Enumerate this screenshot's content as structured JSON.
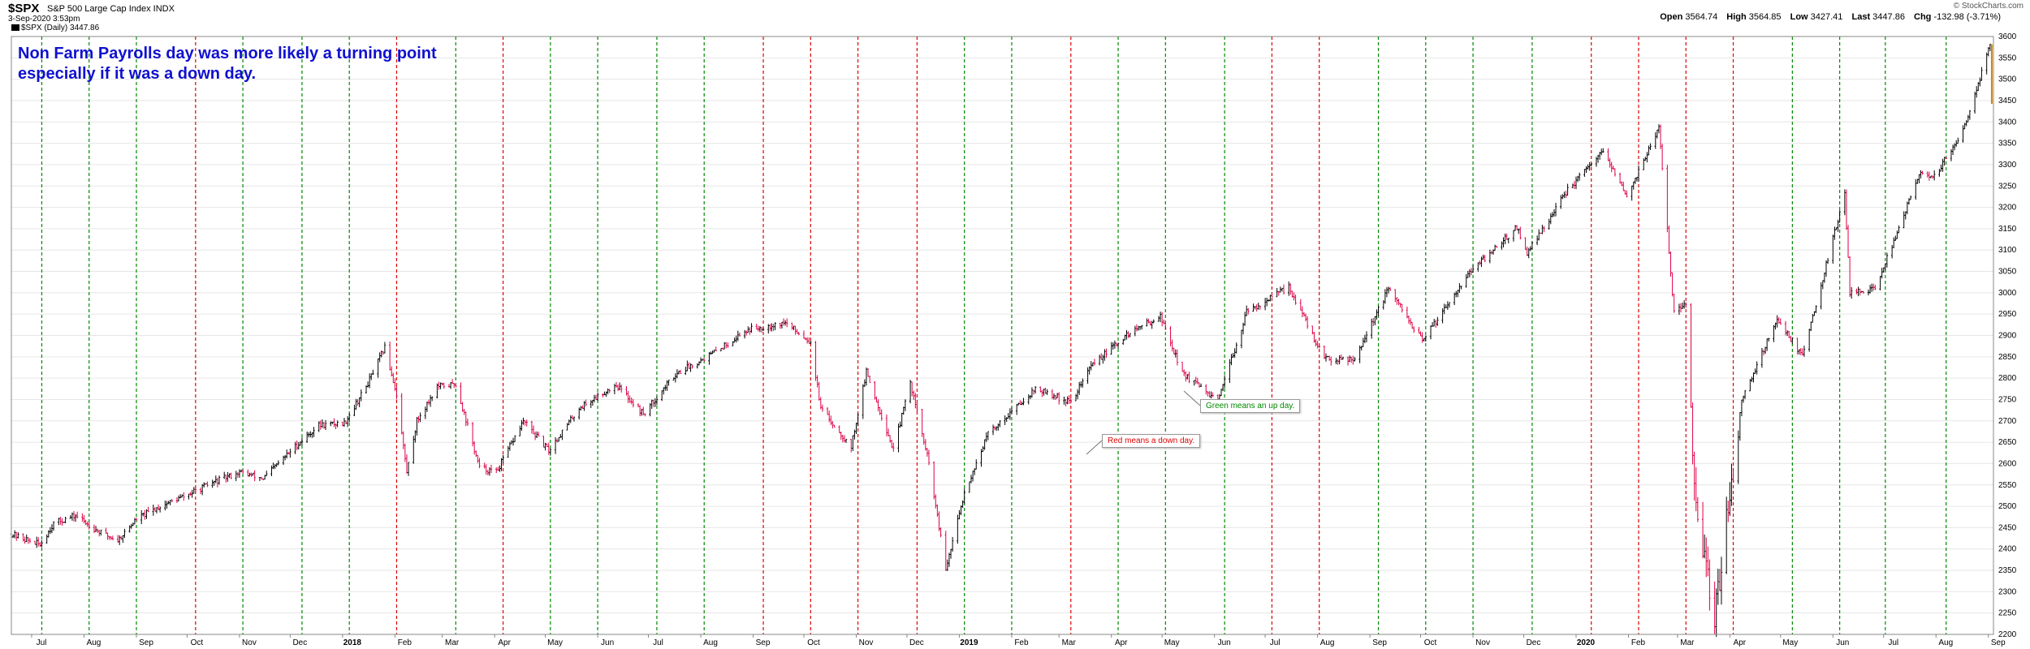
{
  "header": {
    "ticker": "$SPX",
    "description": "S&P 500 Large Cap Index  INDX",
    "timestamp": "3-Sep-2020 3:53pm",
    "legend": "$SPX (Daily) 3447.86",
    "copyright": "© StockCharts.com",
    "ohlc": {
      "open_label": "Open",
      "open": "3564.74",
      "high_label": "High",
      "high": "3564.85",
      "low_label": "Low",
      "low": "3427.41",
      "last_label": "Last",
      "last": "3447.86",
      "chg_label": "Chg",
      "chg": "-132.98 (-3.71%)"
    }
  },
  "annotations": {
    "title_line1": "Non Farm Payrolls day was more likely a turning point",
    "title_line2": "especially if it was a down day.",
    "green_note": "Green means an up day.",
    "red_note": "Red means a down day."
  },
  "colors": {
    "up_day_line": "#008800",
    "down_day_line": "#dd0000",
    "bar_up": "#000000",
    "bar_down": "#dd0044",
    "last_bar": "#cc8800",
    "grid": "#e6e6e6",
    "annotation_text": "#1010d0"
  },
  "chart_data": {
    "type": "line",
    "subtype": "ohlc-bar",
    "title": "",
    "xlabel": "",
    "ylabel": "",
    "ylim": [
      2200,
      3600
    ],
    "y_ticks": [
      2200,
      2250,
      2300,
      2350,
      2400,
      2450,
      2500,
      2550,
      2600,
      2650,
      2700,
      2750,
      2800,
      2850,
      2900,
      2950,
      3000,
      3050,
      3100,
      3150,
      3200,
      3250,
      3300,
      3350,
      3400,
      3450,
      3500,
      3550,
      3600
    ],
    "x_tick_labels": [
      "Jul",
      "Aug",
      "Sep",
      "Oct",
      "Nov",
      "Dec",
      "2018",
      "Feb",
      "Mar",
      "Apr",
      "May",
      "Jun",
      "Jul",
      "Aug",
      "Sep",
      "Oct",
      "Nov",
      "Dec",
      "2019",
      "Feb",
      "Mar",
      "Apr",
      "May",
      "Jun",
      "Jul",
      "Aug",
      "Sep",
      "Oct",
      "Nov",
      "Dec",
      "2020",
      "Feb",
      "Mar",
      "Apr",
      "May",
      "Jun",
      "Jul",
      "Aug",
      "Sep"
    ],
    "x_tick_months": [
      "2017-07",
      "2017-08",
      "2017-09",
      "2017-10",
      "2017-11",
      "2017-12",
      "2018-01",
      "2018-02",
      "2018-03",
      "2018-04",
      "2018-05",
      "2018-06",
      "2018-07",
      "2018-08",
      "2018-09",
      "2018-10",
      "2018-11",
      "2018-12",
      "2019-01",
      "2019-02",
      "2019-03",
      "2019-04",
      "2019-05",
      "2019-06",
      "2019-07",
      "2019-08",
      "2019-09",
      "2019-10",
      "2019-11",
      "2019-12",
      "2020-01",
      "2020-02",
      "2020-03",
      "2020-04",
      "2020-05",
      "2020-06",
      "2020-07",
      "2020-08",
      "2020-09"
    ],
    "x_range": [
      "2017-06-19",
      "2020-09-04"
    ],
    "payroll_days": [
      {
        "date": "2017-07-07",
        "up": true
      },
      {
        "date": "2017-08-04",
        "up": true
      },
      {
        "date": "2017-09-01",
        "up": true
      },
      {
        "date": "2017-10-06",
        "up": false
      },
      {
        "date": "2017-11-03",
        "up": true
      },
      {
        "date": "2017-12-08",
        "up": true
      },
      {
        "date": "2018-01-05",
        "up": true
      },
      {
        "date": "2018-02-02",
        "up": false
      },
      {
        "date": "2018-03-09",
        "up": true
      },
      {
        "date": "2018-04-06",
        "up": false
      },
      {
        "date": "2018-05-04",
        "up": true
      },
      {
        "date": "2018-06-01",
        "up": true
      },
      {
        "date": "2018-07-06",
        "up": true
      },
      {
        "date": "2018-08-03",
        "up": true
      },
      {
        "date": "2018-09-07",
        "up": false
      },
      {
        "date": "2018-10-05",
        "up": false
      },
      {
        "date": "2018-11-02",
        "up": false
      },
      {
        "date": "2018-12-07",
        "up": false
      },
      {
        "date": "2019-01-04",
        "up": true
      },
      {
        "date": "2019-02-01",
        "up": true
      },
      {
        "date": "2019-03-08",
        "up": false
      },
      {
        "date": "2019-04-05",
        "up": true
      },
      {
        "date": "2019-05-03",
        "up": true
      },
      {
        "date": "2019-06-07",
        "up": true
      },
      {
        "date": "2019-07-05",
        "up": false
      },
      {
        "date": "2019-08-02",
        "up": false
      },
      {
        "date": "2019-09-06",
        "up": true
      },
      {
        "date": "2019-10-04",
        "up": true
      },
      {
        "date": "2019-11-01",
        "up": true
      },
      {
        "date": "2019-12-06",
        "up": true
      },
      {
        "date": "2020-01-10",
        "up": false
      },
      {
        "date": "2020-02-07",
        "up": false
      },
      {
        "date": "2020-03-06",
        "up": false
      },
      {
        "date": "2020-04-03",
        "up": false
      },
      {
        "date": "2020-05-08",
        "up": true
      },
      {
        "date": "2020-06-05",
        "up": true
      },
      {
        "date": "2020-07-02",
        "up": true
      },
      {
        "date": "2020-08-07",
        "up": true
      }
    ],
    "price_path": [
      [
        "2017-06-19",
        2435
      ],
      [
        "2017-06-29",
        2420
      ],
      [
        "2017-07-06",
        2410
      ],
      [
        "2017-07-14",
        2460
      ],
      [
        "2017-07-27",
        2478
      ],
      [
        "2017-08-10",
        2440
      ],
      [
        "2017-08-21",
        2420
      ],
      [
        "2017-09-01",
        2470
      ],
      [
        "2017-09-15",
        2500
      ],
      [
        "2017-10-02",
        2528
      ],
      [
        "2017-10-16",
        2555
      ],
      [
        "2017-11-01",
        2580
      ],
      [
        "2017-11-15",
        2565
      ],
      [
        "2017-12-04",
        2640
      ],
      [
        "2017-12-18",
        2690
      ],
      [
        "2018-01-02",
        2695
      ],
      [
        "2018-01-15",
        2780
      ],
      [
        "2018-01-26",
        2872
      ],
      [
        "2018-02-02",
        2762
      ],
      [
        "2018-02-08",
        2580
      ],
      [
        "2018-02-14",
        2700
      ],
      [
        "2018-02-26",
        2780
      ],
      [
        "2018-03-09",
        2786
      ],
      [
        "2018-03-23",
        2590
      ],
      [
        "2018-04-02",
        2580
      ],
      [
        "2018-04-18",
        2700
      ],
      [
        "2018-05-03",
        2630
      ],
      [
        "2018-05-21",
        2730
      ],
      [
        "2018-06-12",
        2785
      ],
      [
        "2018-06-28",
        2716
      ],
      [
        "2018-07-17",
        2810
      ],
      [
        "2018-08-08",
        2858
      ],
      [
        "2018-08-29",
        2914
      ],
      [
        "2018-09-20",
        2930
      ],
      [
        "2018-10-05",
        2885
      ],
      [
        "2018-10-11",
        2728
      ],
      [
        "2018-10-29",
        2640
      ],
      [
        "2018-11-07",
        2814
      ],
      [
        "2018-11-23",
        2632
      ],
      [
        "2018-12-03",
        2790
      ],
      [
        "2018-12-14",
        2600
      ],
      [
        "2018-12-24",
        2351
      ],
      [
        "2019-01-04",
        2532
      ],
      [
        "2019-01-18",
        2670
      ],
      [
        "2019-02-15",
        2775
      ],
      [
        "2019-03-08",
        2743
      ],
      [
        "2019-03-20",
        2830
      ],
      [
        "2019-04-12",
        2907
      ],
      [
        "2019-04-30",
        2945
      ],
      [
        "2019-05-13",
        2812
      ],
      [
        "2019-06-03",
        2744
      ],
      [
        "2019-06-20",
        2954
      ],
      [
        "2019-07-15",
        3014
      ],
      [
        "2019-08-05",
        2844
      ],
      [
        "2019-08-23",
        2847
      ],
      [
        "2019-09-12",
        3009
      ],
      [
        "2019-10-02",
        2887
      ],
      [
        "2019-10-28",
        3039
      ],
      [
        "2019-11-27",
        3153
      ],
      [
        "2019-12-03",
        3093
      ],
      [
        "2019-12-27",
        3240
      ],
      [
        "2020-01-17",
        3330
      ],
      [
        "2020-01-31",
        3225
      ],
      [
        "2020-02-19",
        3386
      ],
      [
        "2020-02-28",
        2954
      ],
      [
        "2020-03-06",
        2972
      ],
      [
        "2020-03-12",
        2480
      ],
      [
        "2020-03-23",
        2237
      ],
      [
        "2020-04-08",
        2750
      ],
      [
        "2020-04-29",
        2939
      ],
      [
        "2020-05-14",
        2852
      ],
      [
        "2020-06-08",
        3232
      ],
      [
        "2020-06-11",
        3002
      ],
      [
        "2020-06-26",
        3009
      ],
      [
        "2020-07-22",
        3276
      ],
      [
        "2020-07-31",
        3271
      ],
      [
        "2020-08-18",
        3389
      ],
      [
        "2020-09-02",
        3580
      ],
      [
        "2020-09-03",
        3447
      ]
    ]
  }
}
